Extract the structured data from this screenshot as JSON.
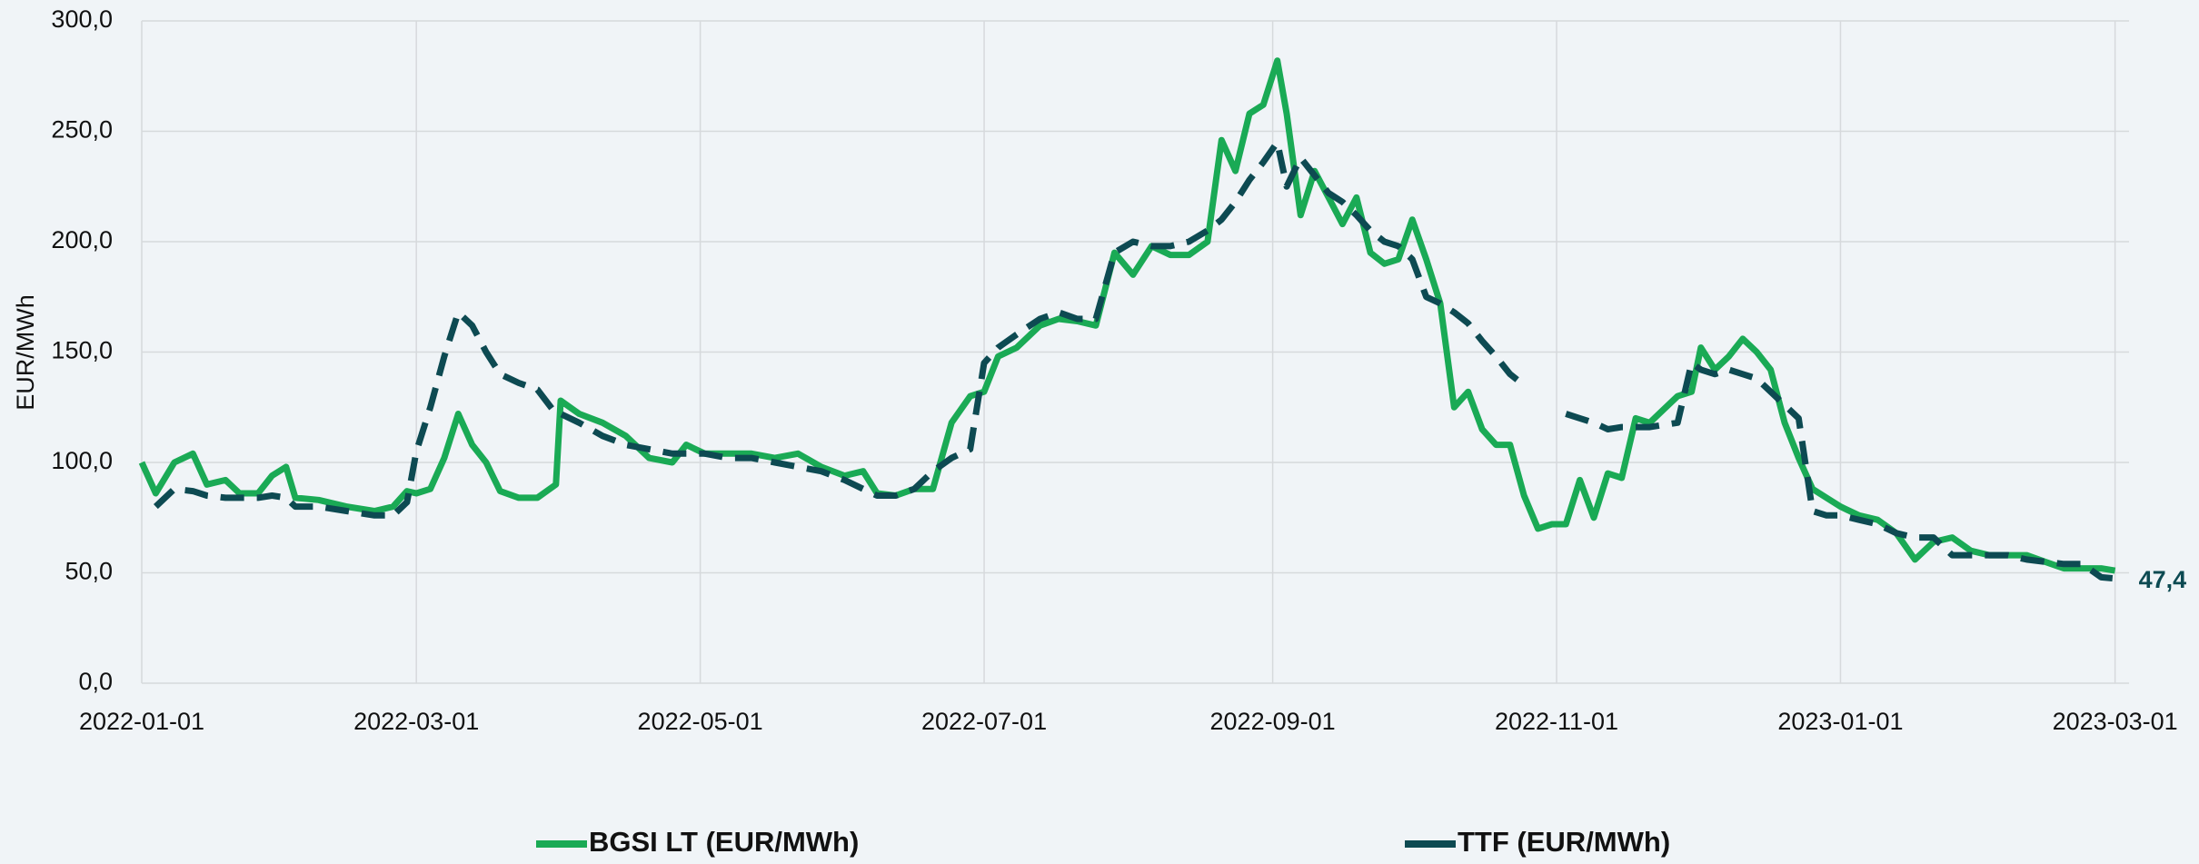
{
  "chart_data": {
    "type": "line",
    "y_label": "EUR/MWh",
    "x": [
      "2022-01-01",
      "2022-01-04",
      "2022-01-08",
      "2022-01-12",
      "2022-01-15",
      "2022-01-19",
      "2022-01-22",
      "2022-01-26",
      "2022-01-29",
      "2022-02-01",
      "2022-02-03",
      "2022-02-08",
      "2022-02-14",
      "2022-02-20",
      "2022-02-24",
      "2022-02-27",
      "2022-03-01",
      "2022-03-04",
      "2022-03-07",
      "2022-03-10",
      "2022-03-13",
      "2022-03-16",
      "2022-03-19",
      "2022-03-23",
      "2022-03-27",
      "2022-03-31",
      "2022-04-01",
      "2022-04-05",
      "2022-04-10",
      "2022-04-15",
      "2022-04-20",
      "2022-04-25",
      "2022-04-28",
      "2022-05-02",
      "2022-05-07",
      "2022-05-12",
      "2022-05-17",
      "2022-05-22",
      "2022-05-27",
      "2022-06-01",
      "2022-06-05",
      "2022-06-08",
      "2022-06-12",
      "2022-06-16",
      "2022-06-20",
      "2022-06-24",
      "2022-06-28",
      "2022-07-01",
      "2022-07-04",
      "2022-07-08",
      "2022-07-13",
      "2022-07-17",
      "2022-07-21",
      "2022-07-25",
      "2022-07-29",
      "2022-08-02",
      "2022-08-06",
      "2022-08-10",
      "2022-08-14",
      "2022-08-18",
      "2022-08-21",
      "2022-08-24",
      "2022-08-27",
      "2022-08-30",
      "2022-09-02",
      "2022-09-04",
      "2022-09-07",
      "2022-09-10",
      "2022-09-13",
      "2022-09-16",
      "2022-09-19",
      "2022-09-22",
      "2022-09-25",
      "2022-09-28",
      "2022-10-01",
      "2022-10-04",
      "2022-10-07",
      "2022-10-10",
      "2022-10-13",
      "2022-10-16",
      "2022-10-19",
      "2022-10-22",
      "2022-10-25",
      "2022-10-28",
      "2022-10-31",
      "2022-11-03",
      "2022-11-06",
      "2022-11-09",
      "2022-11-12",
      "2022-11-15",
      "2022-11-18",
      "2022-11-21",
      "2022-11-24",
      "2022-11-27",
      "2022-11-30",
      "2022-12-02",
      "2022-12-05",
      "2022-12-08",
      "2022-12-11",
      "2022-12-14",
      "2022-12-17",
      "2022-12-20",
      "2022-12-23",
      "2022-12-26",
      "2022-12-29",
      "2023-01-01",
      "2023-01-05",
      "2023-01-09",
      "2023-01-13",
      "2023-01-17",
      "2023-01-21",
      "2023-01-25",
      "2023-01-29",
      "2023-02-02",
      "2023-02-06",
      "2023-02-10",
      "2023-02-14",
      "2023-02-18",
      "2023-02-22",
      "2023-02-26",
      "2023-03-01"
    ],
    "series": [
      {
        "name": "BGSI LT (EUR/MWh)",
        "color": "#1aaa55",
        "dashed": false,
        "values": [
          100,
          86,
          100,
          104,
          90,
          92,
          86,
          86,
          94,
          98,
          84,
          83,
          80,
          78,
          80,
          87,
          86,
          88,
          102,
          122,
          108,
          100,
          87,
          84,
          84,
          90,
          128,
          122,
          118,
          112,
          102,
          100,
          108,
          104,
          104,
          104,
          102,
          104,
          98,
          94,
          96,
          86,
          85,
          88,
          88,
          118,
          130,
          132,
          148,
          152,
          162,
          165,
          164,
          162,
          195,
          185,
          198,
          194,
          194,
          200,
          246,
          232,
          258,
          262,
          282,
          258,
          212,
          232,
          220,
          208,
          220,
          195,
          190,
          192,
          210,
          192,
          172,
          125,
          132,
          115,
          108,
          108,
          85,
          70,
          72,
          72,
          92,
          75,
          95,
          93,
          120,
          118,
          124,
          130,
          132,
          152,
          142,
          148,
          156,
          150,
          142,
          118,
          102,
          88,
          84,
          80,
          76,
          74,
          68,
          56,
          64,
          66,
          60,
          58,
          58,
          58,
          55,
          52,
          52,
          52,
          51
        ]
      },
      {
        "name": "TTF (EUR/MWh)",
        "color": "#0d4a52",
        "dashed": true,
        "last_value_label": "47,4",
        "values": [
          null,
          80,
          88,
          87,
          85,
          84,
          84,
          84,
          85,
          84,
          80,
          80,
          78,
          76,
          76,
          82,
          105,
          125,
          148,
          168,
          162,
          150,
          140,
          136,
          133,
          122,
          122,
          118,
          112,
          108,
          106,
          104,
          104,
          104,
          102,
          102,
          100,
          98,
          96,
          92,
          88,
          85,
          85,
          88,
          96,
          102,
          106,
          145,
          152,
          158,
          165,
          168,
          165,
          165,
          195,
          200,
          198,
          198,
          200,
          205,
          210,
          218,
          228,
          236,
          245,
          225,
          238,
          230,
          222,
          218,
          212,
          205,
          200,
          198,
          192,
          175,
          172,
          168,
          163,
          155,
          148,
          140,
          135,
          null,
          null,
          122,
          120,
          118,
          115,
          116,
          116,
          116,
          117,
          118,
          145,
          142,
          140,
          142,
          140,
          138,
          132,
          126,
          120,
          78,
          76,
          76,
          74,
          72,
          68,
          66,
          66,
          58,
          58,
          58,
          58,
          56,
          55,
          54,
          54,
          48,
          47.4
        ]
      }
    ],
    "xlim": [
      "2022-01-01",
      "2023-03-04"
    ],
    "xticks": [
      "2022-01-01",
      "2022-03-01",
      "2022-05-01",
      "2022-07-01",
      "2022-09-01",
      "2022-11-01",
      "2023-01-01",
      "2023-03-01"
    ],
    "ylim": [
      0,
      300
    ],
    "yticks": [
      {
        "value": 0,
        "label": "0,0"
      },
      {
        "value": 50,
        "label": "50,0"
      },
      {
        "value": 100,
        "label": "100,0"
      },
      {
        "value": 150,
        "label": "150,0"
      },
      {
        "value": 200,
        "label": "200,0"
      },
      {
        "value": 250,
        "label": "250,0"
      },
      {
        "value": 300,
        "label": "300,0"
      }
    ],
    "grid": true,
    "legend": "bottom"
  }
}
